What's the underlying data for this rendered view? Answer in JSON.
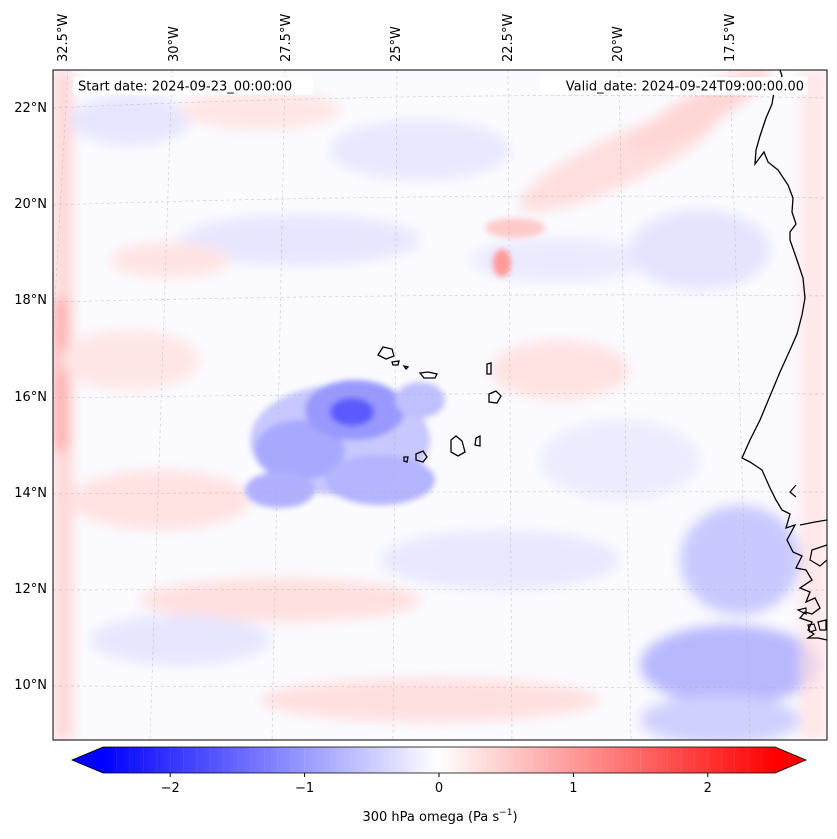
{
  "map": {
    "start_date_label": "Start date: 2024-09-23_00:00:00",
    "valid_date_label": "Valid_date: 2024-09-24T09:00:00.00",
    "variable": "300 hPa omega",
    "projection": "lambert-conformal",
    "field_colormap": "bwr",
    "lon_labels": [
      {
        "value": -32.5,
        "text": "32.5°W"
      },
      {
        "value": -30.0,
        "text": "30°W"
      },
      {
        "value": -27.5,
        "text": "27.5°W"
      },
      {
        "value": -25.0,
        "text": "25°W"
      },
      {
        "value": -22.5,
        "text": "22.5°W"
      },
      {
        "value": -20.0,
        "text": "20°W"
      },
      {
        "value": -17.5,
        "text": "17.5°W"
      }
    ],
    "lat_labels": [
      {
        "value": 22,
        "text": "22°N"
      },
      {
        "value": 20,
        "text": "20°N"
      },
      {
        "value": 18,
        "text": "18°N"
      },
      {
        "value": 16,
        "text": "16°N"
      },
      {
        "value": 14,
        "text": "14°N"
      },
      {
        "value": 12,
        "text": "12°N"
      },
      {
        "value": 10,
        "text": "10°N"
      }
    ],
    "features": [
      {
        "name": "Cape Verde islands",
        "type": "island-group",
        "lat": 15.5,
        "lon": -23.8
      },
      {
        "name": "West African coastline",
        "type": "coastline",
        "lon_range": [
          -17.5,
          -16.5
        ]
      },
      {
        "name": "descent region (blue patch)",
        "type": "omega-negative",
        "center_lat": 15.5,
        "center_lon": -26.8,
        "approx_min": -2.0
      },
      {
        "name": "ascent spot near 18.7N",
        "type": "omega-positive",
        "center_lat": 18.7,
        "center_lon": -22.4,
        "approx_max": 0.8
      }
    ]
  },
  "colorbar": {
    "label_prefix": "300 hPa omega (Pa s",
    "label_sup": "−1",
    "label_suffix": ")",
    "vmin": -2.5,
    "vmax": 2.5,
    "extend": "both",
    "ticks": [
      {
        "value": -2,
        "text": "−2"
      },
      {
        "value": -1,
        "text": "−1"
      },
      {
        "value": 0,
        "text": "0"
      },
      {
        "value": 1,
        "text": "1"
      },
      {
        "value": 2,
        "text": "2"
      }
    ],
    "colors": {
      "low": "#0000ff",
      "mid": "#ffffff",
      "high": "#ff0000"
    }
  }
}
